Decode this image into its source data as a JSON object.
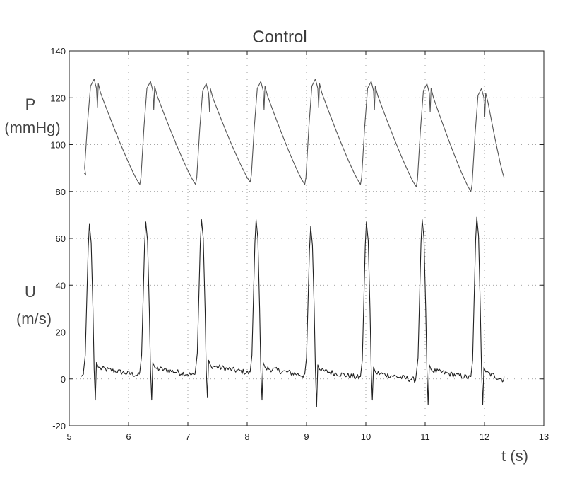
{
  "chart_data": {
    "type": "line",
    "title": "Control",
    "xlabel": "t (s)",
    "ylabels": {
      "pressure": [
        "P",
        "(mmHg)"
      ],
      "velocity": [
        "U",
        "(m/s)"
      ]
    },
    "xlim": [
      5,
      13
    ],
    "ylim": [
      -20,
      140
    ],
    "xticks": [
      5,
      6,
      7,
      8,
      9,
      10,
      11,
      12,
      13
    ],
    "yticks": [
      -20,
      0,
      20,
      40,
      60,
      80,
      100,
      120,
      140
    ],
    "grid": true,
    "beats": [
      5.25,
      6.2,
      7.14,
      8.06,
      8.98,
      9.92,
      10.86,
      11.78
    ],
    "series": [
      {
        "id": "P",
        "color": "#555555",
        "start": {
          "x": 5.25,
          "y": 88
        },
        "end": {
          "x": 12.33,
          "y": 86
        },
        "minima": [
          83,
          83,
          84,
          83,
          83,
          82,
          80
        ],
        "peaks": [
          128,
          127,
          126,
          127,
          128,
          127,
          126,
          124
        ]
      },
      {
        "id": "U",
        "color": "#222222",
        "start": {
          "x": 5.2,
          "y": 1
        },
        "end": {
          "x": 12.33,
          "y": 1
        },
        "peaks": [
          66,
          67,
          68,
          68,
          65,
          67,
          68,
          69
        ],
        "troughs": [
          -9,
          -9,
          -8,
          -9,
          -12,
          -9,
          -11,
          -11
        ],
        "baseline": [
          2,
          2,
          3,
          2,
          1,
          0,
          1,
          0
        ]
      }
    ]
  }
}
